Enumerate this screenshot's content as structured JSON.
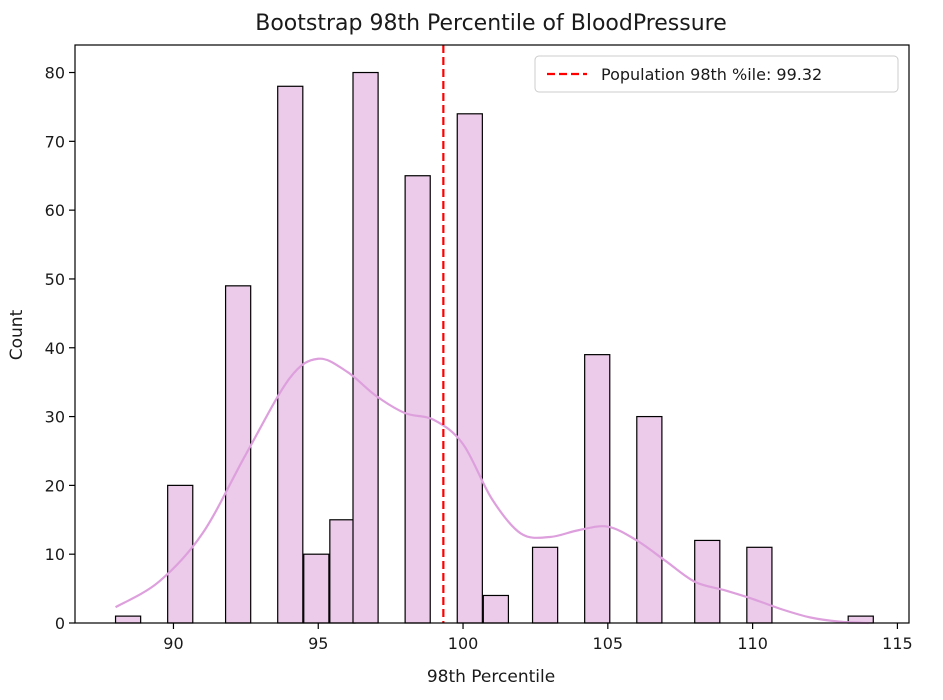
{
  "chart_data": {
    "type": "bar",
    "title": "Bootstrap 98th Percentile of BloodPressure",
    "xlabel": "98th Percentile",
    "ylabel": "Count",
    "xlim": [
      86.6,
      115.4
    ],
    "ylim": [
      0,
      84
    ],
    "xticks": [
      90,
      95,
      100,
      105,
      110,
      115
    ],
    "yticks": [
      0,
      10,
      20,
      30,
      40,
      50,
      60,
      70,
      80
    ],
    "bin_width": 0.867,
    "bins": [
      {
        "x": 88.0,
        "count": 1
      },
      {
        "x": 89.8,
        "count": 0
      },
      {
        "x": 89.8,
        "count": 20
      },
      {
        "x": 91.8,
        "count": 49
      },
      {
        "x": 93.6,
        "count": 78
      },
      {
        "x": 94.5,
        "count": 10
      },
      {
        "x": 95.4,
        "count": 15
      },
      {
        "x": 96.2,
        "count": 80
      },
      {
        "x": 98.0,
        "count": 65
      },
      {
        "x": 99.8,
        "count": 74
      },
      {
        "x": 100.7,
        "count": 4
      },
      {
        "x": 102.4,
        "count": 11
      },
      {
        "x": 104.2,
        "count": 39
      },
      {
        "x": 106.0,
        "count": 30
      },
      {
        "x": 108.0,
        "count": 12
      },
      {
        "x": 109.8,
        "count": 11
      },
      {
        "x": 113.3,
        "count": 1
      }
    ],
    "kde": {
      "name": "KDE",
      "x": [
        88.0,
        89.5,
        91.0,
        92.5,
        94.0,
        95.0,
        96.0,
        97.0,
        98.0,
        99.0,
        100.0,
        101.0,
        102.0,
        103.0,
        104.0,
        105.0,
        106.0,
        107.0,
        108.0,
        109.0,
        110.0,
        111.0,
        112.0,
        113.0,
        114.0
      ],
      "y": [
        2.3,
        6.0,
        13.0,
        24.5,
        35.5,
        38.4,
        36.5,
        33.0,
        30.5,
        29.5,
        26.0,
        18.0,
        13.0,
        12.5,
        13.5,
        14.0,
        12.0,
        9.0,
        6.0,
        4.8,
        3.5,
        2.0,
        0.8,
        0.2,
        0.0
      ]
    },
    "vline": {
      "x": 99.32,
      "label": "Population 98th %ile: 99.32",
      "color": "#ff0000"
    },
    "colors": {
      "bar_fill": "#eccbea",
      "bar_edge": "#000000",
      "kde": "#dda0dd"
    },
    "legend": {
      "position": "top-right"
    }
  }
}
